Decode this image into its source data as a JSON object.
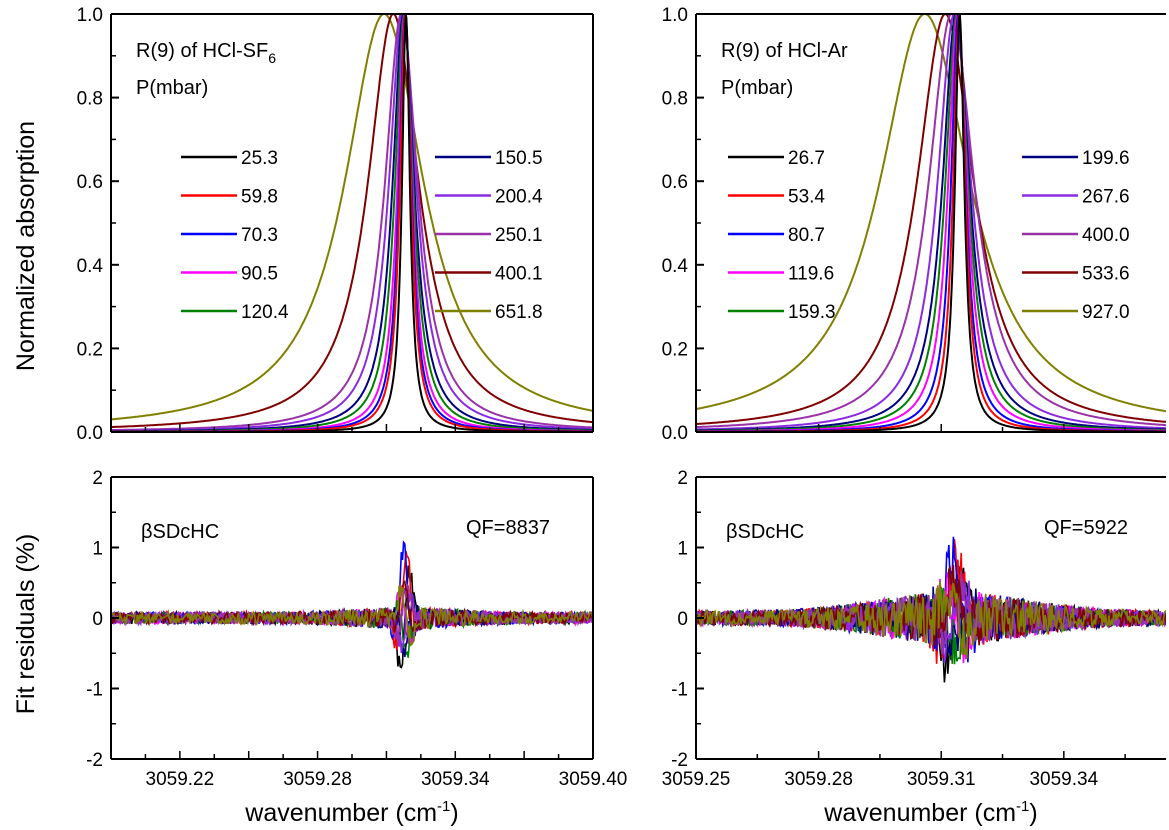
{
  "ylabel_top": "Normalized absorption",
  "ylabel_bottom": "Fit residuals (%)",
  "chart_data": [
    {
      "type": "line",
      "panel": "top-left",
      "title": "R(9) of HCl-SF",
      "title_subscript": "6",
      "subtitle": "P(mbar)",
      "ylabel": "Normalized absorption",
      "xlim": [
        3059.19,
        3059.4
      ],
      "ylim": [
        0,
        1.0
      ],
      "yticks": [
        "0.0",
        "0.2",
        "0.4",
        "0.6",
        "0.8",
        "1.0"
      ],
      "center": 3059.318,
      "series": [
        {
          "name": "25.3",
          "color": "#000000",
          "peak_x": 3059.3185,
          "half_width": 0.0021
        },
        {
          "name": "59.8",
          "color": "#ff0000",
          "peak_x": 3059.3183,
          "half_width": 0.0029
        },
        {
          "name": "70.3",
          "color": "#0000ff",
          "peak_x": 3059.3182,
          "half_width": 0.0033
        },
        {
          "name": "90.5",
          "color": "#ff00ff",
          "peak_x": 3059.318,
          "half_width": 0.0039
        },
        {
          "name": "120.4",
          "color": "#008000",
          "peak_x": 3059.3177,
          "half_width": 0.0048
        },
        {
          "name": "150.5",
          "color": "#000080",
          "peak_x": 3059.3174,
          "half_width": 0.0057
        },
        {
          "name": "200.4",
          "color": "#8a2be2",
          "peak_x": 3059.317,
          "half_width": 0.0072
        },
        {
          "name": "250.1",
          "color": "#9932a8",
          "peak_x": 3059.3165,
          "half_width": 0.0087
        },
        {
          "name": "400.1",
          "color": "#800000",
          "peak_x": 3059.313,
          "half_width": 0.0135
        },
        {
          "name": "651.8",
          "color": "#808000",
          "peak_x": 3059.309,
          "half_width": 0.021
        }
      ]
    },
    {
      "type": "line",
      "panel": "top-right",
      "title": "R(9) of HCl-Ar",
      "subtitle": "P(mbar)",
      "xlim": [
        3059.25,
        3059.365
      ],
      "ylim": [
        0,
        1.0
      ],
      "yticks": [
        "0.0",
        "0.2",
        "0.4",
        "0.6",
        "0.8",
        "1.0"
      ],
      "center": 3059.314,
      "series": [
        {
          "name": "26.7",
          "color": "#000000",
          "peak_x": 3059.3145,
          "half_width": 0.0014
        },
        {
          "name": "53.4",
          "color": "#ff0000",
          "peak_x": 3059.3144,
          "half_width": 0.0018
        },
        {
          "name": "80.7",
          "color": "#0000ff",
          "peak_x": 3059.3142,
          "half_width": 0.0022
        },
        {
          "name": "119.6",
          "color": "#ff00ff",
          "peak_x": 3059.314,
          "half_width": 0.0028
        },
        {
          "name": "159.3",
          "color": "#008000",
          "peak_x": 3059.3138,
          "half_width": 0.0034
        },
        {
          "name": "199.6",
          "color": "#000080",
          "peak_x": 3059.3136,
          "half_width": 0.004
        },
        {
          "name": "267.6",
          "color": "#8a2be2",
          "peak_x": 3059.3132,
          "half_width": 0.005
        },
        {
          "name": "400.0",
          "color": "#9932a8",
          "peak_x": 3059.3125,
          "half_width": 0.0068
        },
        {
          "name": "533.6",
          "color": "#800000",
          "peak_x": 3059.311,
          "half_width": 0.0085
        },
        {
          "name": "927.0",
          "color": "#808000",
          "peak_x": 3059.306,
          "half_width": 0.0135
        }
      ]
    },
    {
      "type": "line",
      "panel": "bottom-left",
      "label": "βSDcHC",
      "annotation": "QF=8837",
      "ylabel": "Fit residuals (%)",
      "xlabel": "wavenumber (cm",
      "xlabel_superscript": "-1",
      "xlabel_suffix": ")",
      "xlim": [
        3059.19,
        3059.4
      ],
      "ylim": [
        -2,
        2
      ],
      "yticks": [
        "-2",
        "-1",
        "0",
        "1",
        "2"
      ],
      "xticks": [
        "3059.22",
        "3059.28",
        "3059.34",
        "3059.40"
      ],
      "xtick_values": [
        3059.22,
        3059.28,
        3059.34,
        3059.4
      ],
      "center": 3059.318,
      "noise_amplitude": 0.12,
      "peak_residual_amplitude": 1.0
    },
    {
      "type": "line",
      "panel": "bottom-right",
      "label": "βSDcHC",
      "annotation": "QF=5922",
      "xlabel": "wavenumber (cm",
      "xlabel_superscript": "-1",
      "xlabel_suffix": ")",
      "xlim": [
        3059.25,
        3059.365
      ],
      "ylim": [
        -2,
        2
      ],
      "yticks": [
        "-2",
        "-1",
        "0",
        "1",
        "2"
      ],
      "xticks": [
        "3059.25",
        "3059.28",
        "3059.31",
        "3059.34"
      ],
      "xtick_values": [
        3059.25,
        3059.28,
        3059.31,
        3059.34
      ],
      "center": 3059.313,
      "noise_amplitude": 0.3,
      "peak_residual_amplitude": 0.9
    }
  ]
}
